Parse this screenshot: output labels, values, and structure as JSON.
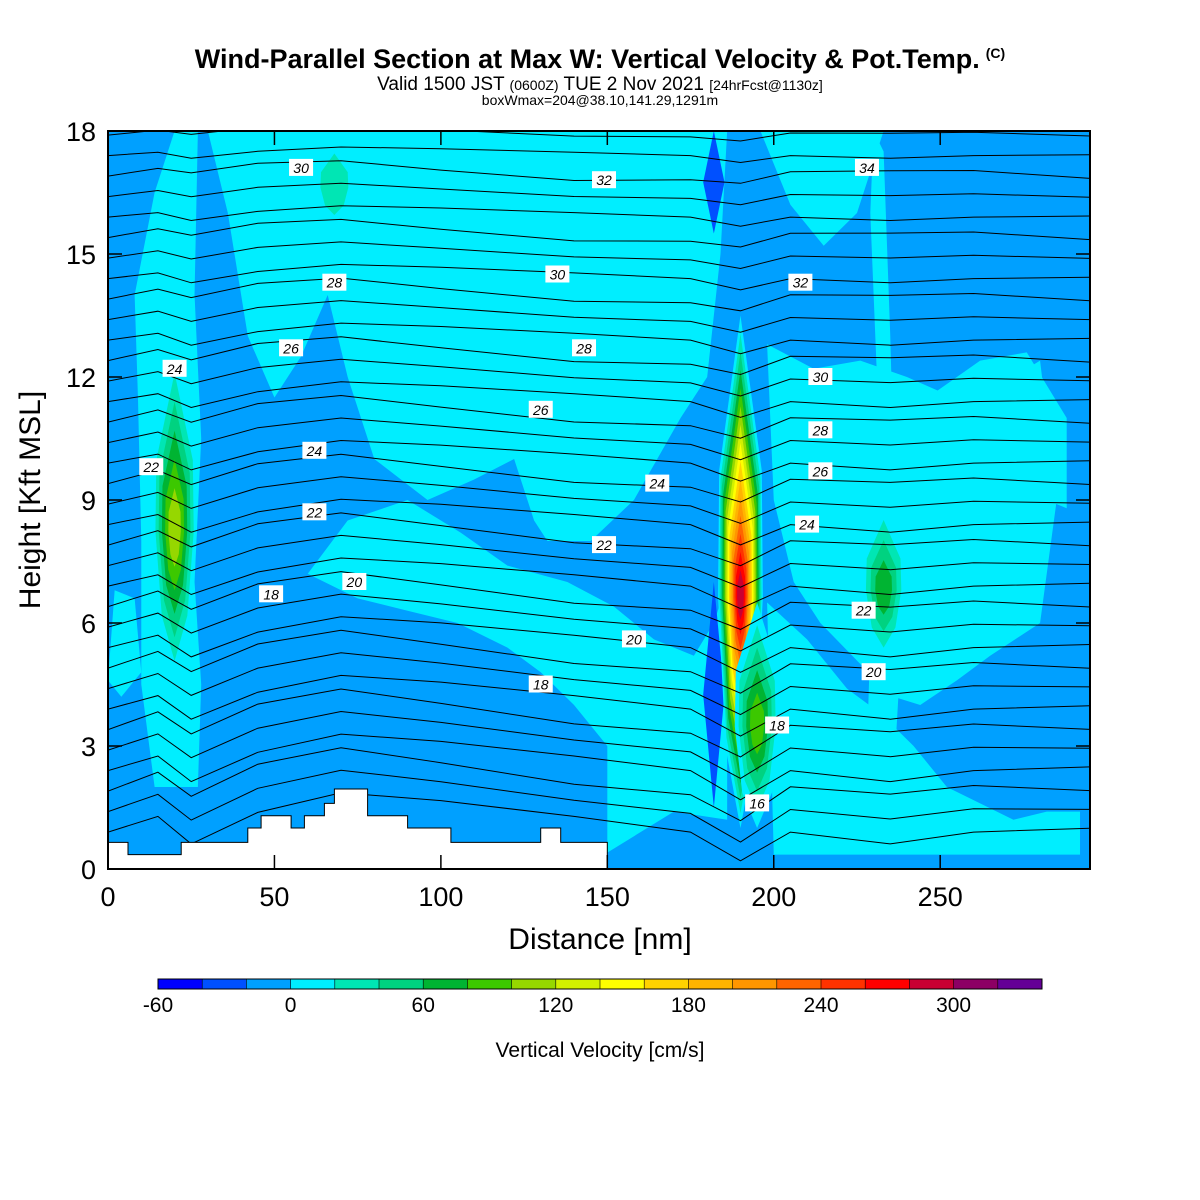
{
  "title": {
    "main": "Wind-Parallel Section at Max W: Vertical Velocity & Pot.Temp.",
    "copyright": "(C)",
    "valid_a": "Valid 1500 JST",
    "valid_b": "(0600Z)",
    "valid_c": "TUE 2 Nov 2021",
    "valid_d": "[24hrFcst@1130z]",
    "box": "boxWmax=204@38.10,141.29,1291m"
  },
  "chart_data": {
    "type": "heatmap",
    "xlabel": "Distance [nm]",
    "ylabel": "Height [Kft MSL]",
    "xlim": [
      0,
      295
    ],
    "ylim": [
      0,
      18
    ],
    "x_ticks": [
      0,
      50,
      100,
      150,
      200,
      250
    ],
    "y_ticks": [
      0,
      3,
      6,
      9,
      12,
      15,
      18
    ],
    "background_color": "#00a0ff",
    "terrain_color": "#ffffff",
    "contour_color": "#000000",
    "contour_variable": "Potential temperature",
    "contour_labels": [
      {
        "value": "30",
        "x": 58,
        "y": 17.1
      },
      {
        "value": "32",
        "x": 149,
        "y": 16.8
      },
      {
        "value": "34",
        "x": 228,
        "y": 17.1
      },
      {
        "value": "28",
        "x": 68,
        "y": 14.3
      },
      {
        "value": "30",
        "x": 135,
        "y": 14.5
      },
      {
        "value": "32",
        "x": 208,
        "y": 14.3
      },
      {
        "value": "24",
        "x": 20,
        "y": 12.2
      },
      {
        "value": "26",
        "x": 55,
        "y": 12.7
      },
      {
        "value": "28",
        "x": 143,
        "y": 12.7
      },
      {
        "value": "30",
        "x": 214,
        "y": 12.0
      },
      {
        "value": "26",
        "x": 130,
        "y": 11.2
      },
      {
        "value": "28",
        "x": 214,
        "y": 10.7
      },
      {
        "value": "22",
        "x": 13,
        "y": 9.8
      },
      {
        "value": "24",
        "x": 62,
        "y": 10.2
      },
      {
        "value": "26",
        "x": 214,
        "y": 9.7
      },
      {
        "value": "24",
        "x": 165,
        "y": 9.4
      },
      {
        "value": "22",
        "x": 62,
        "y": 8.7
      },
      {
        "value": "24",
        "x": 210,
        "y": 8.4
      },
      {
        "value": "22",
        "x": 149,
        "y": 7.9
      },
      {
        "value": "20",
        "x": 74,
        "y": 7.0
      },
      {
        "value": "18",
        "x": 49,
        "y": 6.7
      },
      {
        "value": "22",
        "x": 227,
        "y": 6.3
      },
      {
        "value": "20",
        "x": 158,
        "y": 5.6
      },
      {
        "value": "18",
        "x": 130,
        "y": 4.5
      },
      {
        "value": "20",
        "x": 230,
        "y": 4.8
      },
      {
        "value": "18",
        "x": 201,
        "y": 3.5
      },
      {
        "value": "16",
        "x": 195,
        "y": 1.6
      }
    ],
    "terrain_profile": [
      {
        "x": 0,
        "h": 0.65
      },
      {
        "x": 6,
        "h": 0.65
      },
      {
        "x": 6,
        "h": 0.35
      },
      {
        "x": 22,
        "h": 0.35
      },
      {
        "x": 22,
        "h": 0.65
      },
      {
        "x": 42,
        "h": 0.65
      },
      {
        "x": 42,
        "h": 1.0
      },
      {
        "x": 46,
        "h": 1.0
      },
      {
        "x": 46,
        "h": 1.3
      },
      {
        "x": 55,
        "h": 1.3
      },
      {
        "x": 55,
        "h": 1.0
      },
      {
        "x": 59,
        "h": 1.0
      },
      {
        "x": 59,
        "h": 1.3
      },
      {
        "x": 65,
        "h": 1.3
      },
      {
        "x": 65,
        "h": 1.6
      },
      {
        "x": 68,
        "h": 1.6
      },
      {
        "x": 68,
        "h": 1.95
      },
      {
        "x": 78,
        "h": 1.95
      },
      {
        "x": 78,
        "h": 1.3
      },
      {
        "x": 90,
        "h": 1.3
      },
      {
        "x": 90,
        "h": 1.0
      },
      {
        "x": 103,
        "h": 1.0
      },
      {
        "x": 103,
        "h": 0.65
      },
      {
        "x": 130,
        "h": 0.65
      },
      {
        "x": 130,
        "h": 1.0
      },
      {
        "x": 136,
        "h": 1.0
      },
      {
        "x": 136,
        "h": 0.65
      },
      {
        "x": 150,
        "h": 0.65
      },
      {
        "x": 150,
        "h": 0.35
      }
    ],
    "updrafts": [
      {
        "x": 20,
        "y_bottom": 4.5,
        "y_top": 12.8,
        "peak": 135
      },
      {
        "x": 190,
        "y_bottom": 1.0,
        "y_top": 13.5,
        "peak": 300
      },
      {
        "x": 195,
        "y_bottom": 1.0,
        "y_top": 6.5,
        "peak": 100
      },
      {
        "x": 233,
        "y_bottom": 5.0,
        "y_top": 9.0,
        "peak": 90
      },
      {
        "x": 68,
        "y_bottom": 15.5,
        "y_top": 18.0,
        "peak": 40
      }
    ],
    "downdrafts": [
      {
        "x": 182,
        "y_bottom": 1.5,
        "y_top": 7.0,
        "value": -40
      },
      {
        "x": 182,
        "y_bottom": 15.5,
        "y_top": 18.0,
        "value": -40
      },
      {
        "x": 36,
        "y_bottom": 6.0,
        "y_top": 7.0,
        "value": -20
      }
    ],
    "colorbar": {
      "label": "Vertical Velocity [cm/s]",
      "tick_labels": [
        "-60",
        "0",
        "60",
        "120",
        "180",
        "240",
        "300"
      ],
      "tick_values": [
        -60,
        0,
        60,
        120,
        180,
        240,
        300
      ],
      "bins_min": -60,
      "bin_width": 20,
      "colors": [
        "#0000ff",
        "#0050ff",
        "#00a0ff",
        "#00eeff",
        "#00e6b4",
        "#00d280",
        "#00b432",
        "#3cc800",
        "#96d700",
        "#d2f000",
        "#ffff00",
        "#ffd200",
        "#ffb400",
        "#ff9600",
        "#ff6400",
        "#ff3200",
        "#ff0000",
        "#c80032",
        "#8c0064",
        "#640096"
      ]
    }
  }
}
